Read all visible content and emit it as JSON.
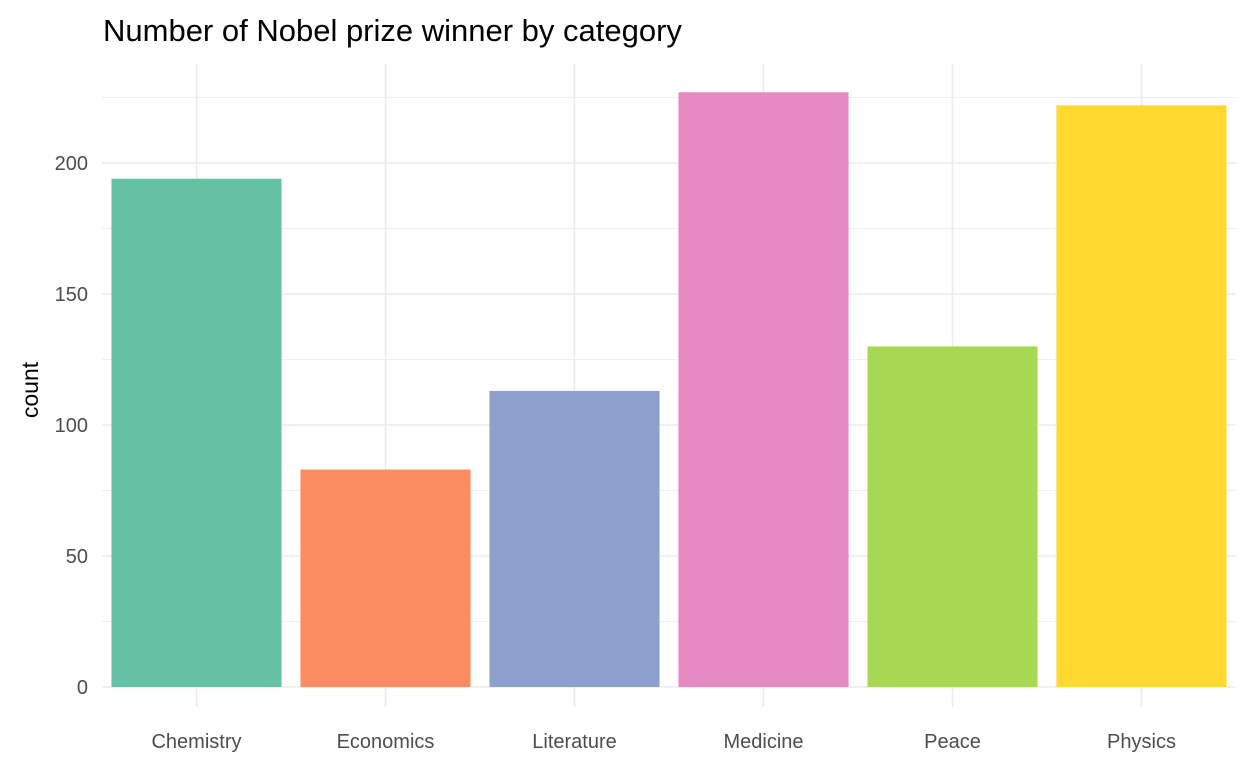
{
  "chart_data": {
    "type": "bar",
    "title": "Number of Nobel prize winner by category",
    "xlabel": "",
    "ylabel": "count",
    "categories": [
      "Chemistry",
      "Economics",
      "Literature",
      "Medicine",
      "Peace",
      "Physics"
    ],
    "values": [
      194,
      83,
      113,
      227,
      130,
      222
    ],
    "colors": [
      "#66c2a5",
      "#fc8d62",
      "#8da0cb",
      "#e78ac3",
      "#a6d854",
      "#ffd92f"
    ],
    "yticks": [
      0,
      50,
      100,
      150,
      200
    ],
    "ylim": [
      0,
      238
    ],
    "grid": true,
    "grid_color": "#ebebeb"
  }
}
